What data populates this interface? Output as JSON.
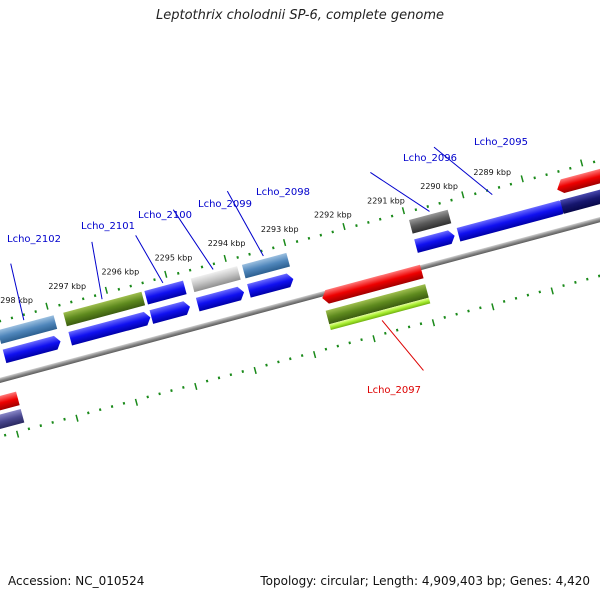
{
  "title": "Leptothrix cholodnii SP-6, complete genome",
  "accession": "Accession: NC_010524",
  "topology": "Topology: circular; Length: 4,909,403 bp; Genes: 4,420",
  "colors": {
    "backbone": "#8a8a8a",
    "ticks": "#1a8a1a",
    "label_forward": "#0000cc",
    "label_reverse": "#dd0000"
  },
  "scale_labels": [
    "2298 kbp",
    "2297 kbp",
    "2296 kbp",
    "2295 kbp",
    "2294 kbp",
    "2293 kbp",
    "2292 kbp",
    "2291 kbp",
    "2290 kbp",
    "2289 kbp"
  ],
  "gene_labels": [
    {
      "text": "Lcho_2102",
      "strand": "forward"
    },
    {
      "text": "Lcho_2101",
      "strand": "forward"
    },
    {
      "text": "Lcho_2100",
      "strand": "forward"
    },
    {
      "text": "Lcho_2099",
      "strand": "forward"
    },
    {
      "text": "Lcho_2098",
      "strand": "forward"
    },
    {
      "text": "Lcho_2096",
      "strand": "forward"
    },
    {
      "text": "Lcho_2095",
      "strand": "forward"
    },
    {
      "text": "Lcho_2097",
      "strand": "reverse"
    }
  ]
}
